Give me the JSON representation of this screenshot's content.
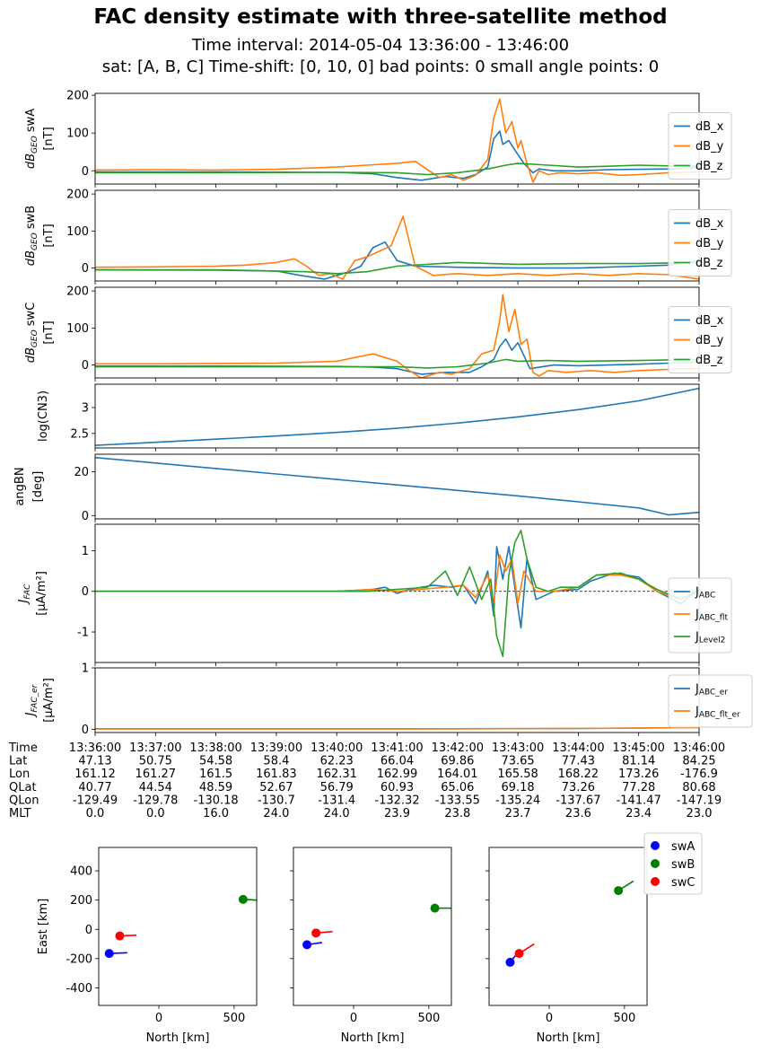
{
  "figure": {
    "title": "FAC density estimate with three-satellite method",
    "subtitle1": "Time interval:  2014-05-04  13:36:00 - 13:46:00",
    "subtitle2": "sat: [A, B, C]    Time-shift: [0, 10, 0]     bad points: 0     small angle points: 0"
  },
  "colors": {
    "blue": "#1f77b4",
    "orange": "#ff7f0e",
    "green": "#2ca02c"
  },
  "chart_data": [
    {
      "type": "line",
      "id": "dB_swA",
      "ylabel": "dB_GEO swA [nT]",
      "ylabel_sym": "dB",
      "ylabel_sub": "GEO",
      "ylabel_sat": " swA",
      "ylabel_unit": "[nT]",
      "ylim": [
        -35,
        205
      ],
      "yticks": [
        0,
        100,
        200
      ],
      "xlim": [
        0,
        10
      ],
      "legend": "right",
      "series": [
        {
          "name": "dB_x",
          "color": "#1f77b4",
          "x": [
            0,
            2,
            4,
            4.6,
            5.0,
            5.4,
            5.8,
            6.1,
            6.3,
            6.5,
            6.6,
            6.7,
            6.75,
            6.85,
            6.95,
            7.1,
            7.25,
            7.35,
            7.6,
            8,
            8.5,
            9,
            9.5,
            10
          ],
          "y": [
            -3,
            -3,
            -4,
            -8,
            -18,
            -25,
            -15,
            -20,
            -10,
            10,
            85,
            105,
            70,
            80,
            55,
            20,
            -5,
            5,
            0,
            0,
            3,
            4,
            5,
            8
          ]
        },
        {
          "name": "dB_y",
          "color": "#ff7f0e",
          "x": [
            0,
            1,
            2,
            3,
            4,
            4.5,
            5.0,
            5.3,
            5.7,
            5.9,
            6.1,
            6.3,
            6.5,
            6.6,
            6.7,
            6.8,
            6.9,
            7.0,
            7.05,
            7.15,
            7.25,
            7.35,
            7.5,
            7.7,
            8,
            8.3,
            8.7,
            9,
            9.5,
            10
          ],
          "y": [
            2,
            3,
            2,
            4,
            10,
            15,
            20,
            25,
            -18,
            -10,
            -25,
            -12,
            30,
            140,
            190,
            100,
            130,
            60,
            80,
            20,
            -30,
            0,
            -10,
            -5,
            -8,
            -5,
            -12,
            -10,
            -5,
            -3
          ]
        },
        {
          "name": "dB_z",
          "color": "#2ca02c",
          "x": [
            0,
            2,
            4,
            5.0,
            5.5,
            6.0,
            6.5,
            6.8,
            7.0,
            7.5,
            8,
            8.5,
            9,
            9.5,
            10
          ],
          "y": [
            -5,
            -5,
            -4,
            -5,
            -10,
            -5,
            5,
            15,
            20,
            15,
            10,
            12,
            15,
            13,
            12
          ]
        }
      ]
    },
    {
      "type": "line",
      "id": "dB_swB",
      "ylabel": "dB_GEO swB [nT]",
      "ylabel_sym": "dB",
      "ylabel_sub": "GEO",
      "ylabel_sat": " swB",
      "ylabel_unit": "[nT]",
      "ylim": [
        -35,
        210
      ],
      "yticks": [
        0,
        100,
        200
      ],
      "xlim": [
        0,
        10
      ],
      "legend": "right",
      "series": [
        {
          "name": "dB_x",
          "color": "#1f77b4",
          "x": [
            0,
            2,
            3,
            3.4,
            3.8,
            4.2,
            4.4,
            4.6,
            4.8,
            5.0,
            5.3,
            6,
            7,
            8,
            9,
            9.5,
            10
          ],
          "y": [
            -5,
            -6,
            -8,
            -20,
            -30,
            -10,
            5,
            55,
            70,
            20,
            5,
            2,
            0,
            0,
            5,
            8,
            20
          ]
        },
        {
          "name": "dB_y",
          "color": "#ff7f0e",
          "x": [
            0,
            1,
            2,
            2.5,
            3,
            3.3,
            3.5,
            3.7,
            3.9,
            4.1,
            4.3,
            4.5,
            4.7,
            4.9,
            5.1,
            5.3,
            5.6,
            6,
            6.5,
            7,
            7.5,
            8,
            8.5,
            9,
            9.5,
            10
          ],
          "y": [
            2,
            3,
            5,
            8,
            15,
            25,
            5,
            -20,
            -15,
            -30,
            20,
            30,
            45,
            60,
            140,
            5,
            -20,
            -15,
            -20,
            -15,
            -20,
            -15,
            -20,
            -15,
            -18,
            -30
          ]
        },
        {
          "name": "dB_z",
          "color": "#2ca02c",
          "x": [
            0,
            2,
            3,
            3.5,
            4,
            4.5,
            5,
            6,
            7,
            8,
            9,
            10
          ],
          "y": [
            -5,
            -5,
            -8,
            -10,
            -15,
            -10,
            5,
            15,
            10,
            12,
            12,
            15
          ]
        }
      ]
    },
    {
      "type": "line",
      "id": "dB_swC",
      "ylabel": "dB_GEO swC [nT]",
      "ylabel_sym": "dB",
      "ylabel_sub": "GEO",
      "ylabel_sat": " swC",
      "ylabel_unit": "[nT]",
      "ylim": [
        -35,
        210
      ],
      "yticks": [
        0,
        100,
        200
      ],
      "xlim": [
        0,
        10
      ],
      "legend": "right",
      "series": [
        {
          "name": "dB_x",
          "color": "#1f77b4",
          "x": [
            0,
            2,
            4,
            4.6,
            5.0,
            5.4,
            5.8,
            6.2,
            6.4,
            6.6,
            6.7,
            6.8,
            6.9,
            7.0,
            7.2,
            7.4,
            7.6,
            8,
            8.5,
            9,
            9.5,
            10
          ],
          "y": [
            -3,
            -3,
            -4,
            -6,
            -10,
            -25,
            -20,
            -20,
            -5,
            15,
            50,
            70,
            40,
            60,
            -10,
            -5,
            0,
            -2,
            0,
            2,
            5,
            8
          ]
        },
        {
          "name": "dB_y",
          "color": "#ff7f0e",
          "x": [
            0,
            1,
            2,
            3,
            4,
            4.3,
            4.6,
            5.0,
            5.2,
            5.4,
            5.7,
            5.9,
            6.2,
            6.4,
            6.6,
            6.7,
            6.75,
            6.85,
            6.95,
            7.05,
            7.15,
            7.25,
            7.35,
            7.5,
            7.8,
            8.2,
            8.6,
            9,
            9.5,
            10
          ],
          "y": [
            3,
            3,
            4,
            5,
            10,
            20,
            30,
            10,
            -15,
            -35,
            -20,
            -25,
            -10,
            30,
            40,
            120,
            190,
            90,
            150,
            55,
            70,
            -20,
            -30,
            -15,
            -20,
            -15,
            -20,
            -15,
            -12,
            -10
          ]
        },
        {
          "name": "dB_z",
          "color": "#2ca02c",
          "x": [
            0,
            2,
            4,
            5,
            5.5,
            6,
            6.5,
            6.8,
            7,
            7.5,
            8,
            9,
            10
          ],
          "y": [
            -5,
            -5,
            -5,
            -5,
            -8,
            -5,
            5,
            15,
            10,
            12,
            10,
            12,
            15
          ]
        }
      ]
    },
    {
      "type": "line",
      "id": "logCN3",
      "ylabel": "log(CN3)",
      "ylabel_unit": "",
      "ylim": [
        2.22,
        3.45
      ],
      "yticks": [
        2.5,
        3.0
      ],
      "xlim": [
        0,
        10
      ],
      "series": [
        {
          "name": "",
          "color": "#1f77b4",
          "x": [
            0,
            1,
            2,
            3,
            4,
            5,
            6,
            7,
            8,
            9,
            10
          ],
          "y": [
            2.27,
            2.33,
            2.39,
            2.45,
            2.52,
            2.6,
            2.7,
            2.82,
            2.96,
            3.13,
            3.37
          ]
        }
      ]
    },
    {
      "type": "line",
      "id": "angBN",
      "ylabel": "angBN",
      "ylabel_unit": "[deg]",
      "ylim": [
        -1.5,
        28
      ],
      "yticks": [
        0,
        20
      ],
      "xlim": [
        0,
        10
      ],
      "series": [
        {
          "name": "",
          "color": "#1f77b4",
          "x": [
            0,
            1,
            2,
            3,
            4,
            5,
            6,
            7,
            8,
            9,
            9.5,
            10
          ],
          "y": [
            26.5,
            24,
            21.5,
            19,
            16.5,
            14,
            11.5,
            9,
            6.3,
            3.5,
            0.3,
            1.5
          ]
        }
      ]
    },
    {
      "type": "line",
      "id": "JFAC",
      "ylabel": "J_FAC [μA/m^2]",
      "ylabel_sym": "J",
      "ylabel_sub": "FAC",
      "ylabel_unit": "[μA/m²]",
      "ylim": [
        -1.75,
        1.65
      ],
      "yticks": [
        -1,
        0,
        1
      ],
      "xlim": [
        0,
        10
      ],
      "zero_line": true,
      "legend": "right",
      "series": [
        {
          "name": "J",
          "sub": "ABC",
          "color": "#1f77b4",
          "x": [
            0,
            3,
            4,
            4.6,
            4.8,
            5.0,
            5.2,
            5.6,
            5.9,
            6.1,
            6.3,
            6.5,
            6.6,
            6.65,
            6.75,
            6.85,
            6.95,
            7.05,
            7.15,
            7.3,
            7.6,
            8,
            8.2,
            8.6,
            9,
            9.3,
            9.7,
            10
          ],
          "y": [
            0,
            0,
            0,
            0.05,
            0.1,
            -0.05,
            0.05,
            0.15,
            0.1,
            0.15,
            -0.3,
            0.5,
            -0.6,
            1.1,
            0.3,
            1.1,
            0.1,
            -0.9,
            0.8,
            -0.2,
            0,
            0.05,
            0.25,
            0.45,
            0.35,
            0.0,
            -0.3,
            0.05
          ]
        },
        {
          "name": "J",
          "sub": "ABC_flt",
          "color": "#ff7f0e",
          "x": [
            0,
            3,
            4,
            4.6,
            5.0,
            5.4,
            5.8,
            6.1,
            6.3,
            6.5,
            6.6,
            6.7,
            6.8,
            6.9,
            7.0,
            7.1,
            7.3,
            7.6,
            8,
            8.3,
            8.7,
            9,
            9.3,
            9.7,
            10
          ],
          "y": [
            0,
            0,
            0,
            0.05,
            0,
            0.05,
            0.1,
            0.15,
            -0.15,
            0.4,
            -0.3,
            0.9,
            0.5,
            0.8,
            -0.3,
            0.5,
            0,
            0,
            0.1,
            0.4,
            0.4,
            0.3,
            0.0,
            -0.2,
            0.05
          ]
        },
        {
          "name": "J",
          "sub": "Level2",
          "color": "#2ca02c",
          "x": [
            0,
            3,
            4,
            4.5,
            5.0,
            5.5,
            5.8,
            6.0,
            6.2,
            6.4,
            6.55,
            6.65,
            6.75,
            6.85,
            6.95,
            7.05,
            7.15,
            7.3,
            7.5,
            7.7,
            8,
            8.3,
            8.7,
            9,
            9.3,
            9.7,
            10
          ],
          "y": [
            0,
            0,
            0,
            0,
            0.05,
            0.1,
            0.5,
            -0.1,
            0.6,
            -0.2,
            0.3,
            -1.1,
            -1.6,
            0.4,
            1.2,
            1.5,
            0.8,
            0.1,
            0,
            0.1,
            0.1,
            0.4,
            0.45,
            0.3,
            0.05,
            -0.2,
            0.05
          ]
        }
      ]
    },
    {
      "type": "line",
      "id": "JFAC_er",
      "ylabel": "J_FAC_er [μA/m^2]",
      "ylabel_sym": "J",
      "ylabel_sub": "FAC_er",
      "ylabel_unit": "[μA/m²]",
      "ylim": [
        -0.05,
        1.0
      ],
      "yticks": [
        0,
        1
      ],
      "xlim": [
        0,
        10
      ],
      "legend": "right",
      "series": [
        {
          "name": "J",
          "sub": "ABC_er",
          "color": "#1f77b4",
          "x": [
            0,
            5,
            8,
            10
          ],
          "y": [
            0.01,
            0.01,
            0.015,
            0.03
          ]
        },
        {
          "name": "J",
          "sub": "ABC_flt_er",
          "color": "#ff7f0e",
          "x": [
            0,
            5,
            8,
            10
          ],
          "y": [
            0.01,
            0.01,
            0.015,
            0.03
          ]
        }
      ]
    }
  ],
  "info_table": {
    "rows": [
      {
        "label": "Time",
        "values": [
          "13:36:00",
          "13:37:00",
          "13:38:00",
          "13:39:00",
          "13:40:00",
          "13:41:00",
          "13:42:00",
          "13:43:00",
          "13:44:00",
          "13:45:00",
          "13:46:00"
        ]
      },
      {
        "label": "Lat",
        "values": [
          "47.13",
          "50.75",
          "54.58",
          "58.4",
          "62.23",
          "66.04",
          "69.86",
          "73.65",
          "77.43",
          "81.14",
          "84.25"
        ]
      },
      {
        "label": "Lon",
        "values": [
          "161.12",
          "161.27",
          "161.5",
          "161.83",
          "162.31",
          "162.99",
          "164.01",
          "165.58",
          "168.22",
          "173.26",
          "-176.9"
        ]
      },
      {
        "label": "QLat",
        "values": [
          "40.77",
          "44.54",
          "48.59",
          "52.67",
          "56.79",
          "60.93",
          "65.06",
          "69.18",
          "73.26",
          "77.28",
          "80.68"
        ]
      },
      {
        "label": "QLon",
        "values": [
          "-129.49",
          "-129.78",
          "-130.18",
          "-130.7",
          "-131.4",
          "-132.32",
          "-133.55",
          "-135.24",
          "-137.67",
          "-141.47",
          "-147.19"
        ]
      },
      {
        "label": "MLT",
        "values": [
          "0.0",
          "0.0",
          "16.0",
          "24.0",
          "24.0",
          "23.9",
          "23.8",
          "23.7",
          "23.6",
          "23.4",
          "23.0"
        ]
      }
    ]
  },
  "constellation": {
    "xlabel": "North [km]",
    "ylabel": "East [km]",
    "xlim": [
      -400,
      650
    ],
    "ylim": [
      -520,
      560
    ],
    "xticks": [
      0,
      500
    ],
    "yticks": [
      -400,
      -200,
      0,
      200,
      400
    ],
    "legend": [
      {
        "name": "swA",
        "color": "#0000ff"
      },
      {
        "name": "swB",
        "color": "#008000"
      },
      {
        "name": "swC",
        "color": "#ff0000"
      }
    ],
    "panels": [
      {
        "points": [
          {
            "sat": "swA",
            "color": "#0000ff",
            "north": -330,
            "east": -165,
            "tail": [
              -210,
              -160
            ]
          },
          {
            "sat": "swB",
            "color": "#008000",
            "north": 560,
            "east": 205,
            "tail": [
              650,
              200
            ]
          },
          {
            "sat": "swC",
            "color": "#ff0000",
            "north": -260,
            "east": -45,
            "tail": [
              -150,
              -40
            ]
          }
        ]
      },
      {
        "points": [
          {
            "sat": "swA",
            "color": "#0000ff",
            "north": -310,
            "east": -105,
            "tail": [
              -210,
              -90
            ]
          },
          {
            "sat": "swB",
            "color": "#008000",
            "north": 540,
            "east": 145,
            "tail": [
              650,
              145
            ]
          },
          {
            "sat": "swC",
            "color": "#ff0000",
            "north": -250,
            "east": -25,
            "tail": [
              -140,
              -15
            ]
          }
        ]
      },
      {
        "points": [
          {
            "sat": "swA",
            "color": "#0000ff",
            "north": -260,
            "east": -225,
            "tail": [
              -225,
              -180
            ]
          },
          {
            "sat": "swB",
            "color": "#008000",
            "north": 460,
            "east": 265,
            "tail": [
              560,
              330
            ]
          },
          {
            "sat": "swC",
            "color": "#ff0000",
            "north": -200,
            "east": -165,
            "tail": [
              -100,
              -100
            ]
          }
        ]
      }
    ]
  }
}
